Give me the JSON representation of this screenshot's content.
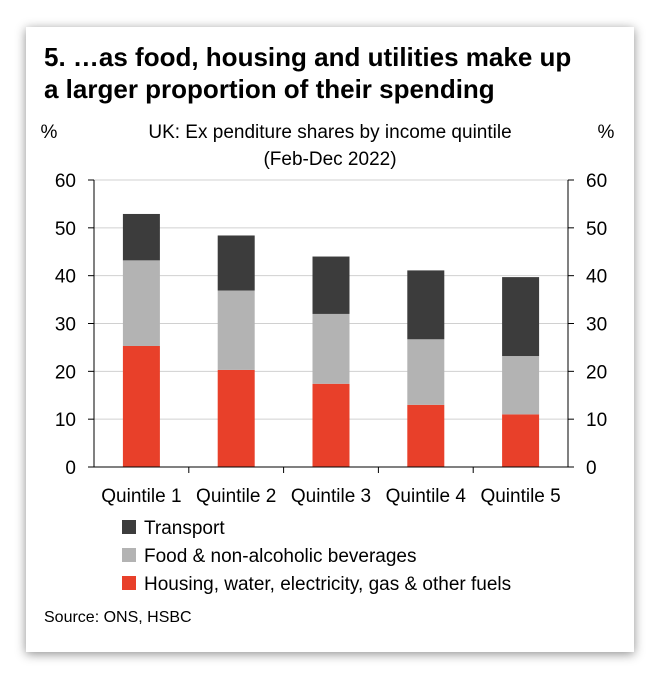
{
  "title_lines": [
    "5. …as food, housing and utilities make up",
    "a larger proportion of their spending"
  ],
  "source": "Source: ONS, HSBC",
  "chart_data": {
    "type": "bar",
    "stacked": true,
    "subtitle_lines": [
      "UK: Ex penditure shares by income quintile",
      "(Feb-Dec 2022)"
    ],
    "y_unit_left": "%",
    "y_unit_right": "%",
    "ylim": [
      0,
      60
    ],
    "yticks": [
      "0",
      "10",
      "20",
      "30",
      "40",
      "50",
      "60"
    ],
    "grid": "horizontal",
    "categories": [
      "Quintile 1",
      "Quintile 2",
      "Quintile 3",
      "Quintile 4",
      "Quintile 5"
    ],
    "series": [
      {
        "name": "Housing, water, electricity, gas & other fuels",
        "color": "#e8402a",
        "values": [
          25.3,
          20.3,
          17.4,
          13.0,
          11.0
        ]
      },
      {
        "name": "Food & non-alcoholic beverages",
        "color": "#b3b3b3",
        "values": [
          17.9,
          16.6,
          14.6,
          13.7,
          12.2
        ]
      },
      {
        "name": "Transport",
        "color": "#3c3c3c",
        "values": [
          9.7,
          11.5,
          12.0,
          14.4,
          16.5
        ]
      }
    ],
    "legend_order": [
      2,
      1,
      0
    ],
    "legend_placement": "bottom"
  }
}
